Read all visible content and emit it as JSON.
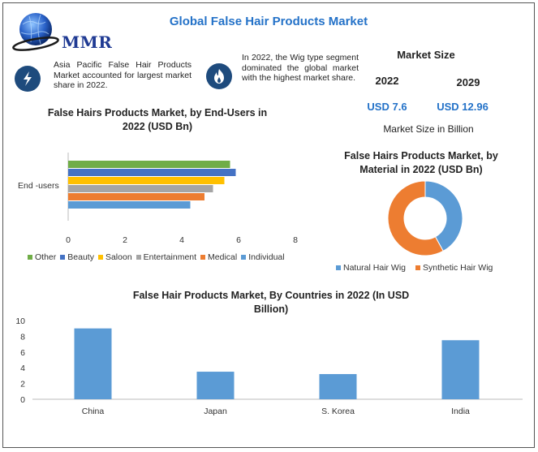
{
  "header": {
    "title": "Global False Hair Products Market",
    "logo_text": "MMR"
  },
  "info": {
    "item1": "Asia Pacific False Hair Products Market accounted for largest market share in 2022.",
    "item2": "In 2022, the Wig type segment dominated the global market with the highest market share."
  },
  "market_size": {
    "title": "Market Size",
    "year1": "2022",
    "year2": "2029",
    "value1": "USD 7.6",
    "value2": "USD 12.96",
    "caption": "Market Size in Billion"
  },
  "colors": {
    "accent_blue": "#2472c8",
    "dark_blue": "#1e4b7d"
  },
  "icons": [
    "globe-icon",
    "lightning-icon",
    "flame-icon"
  ],
  "chart_data": [
    {
      "type": "bar",
      "orientation": "horizontal",
      "title": "False Hairs Products Market, by End-Users in 2022 (USD Bn)",
      "categories": [
        "End -users"
      ],
      "xlim": [
        0,
        8
      ],
      "xticks": [
        0,
        2,
        4,
        6,
        8
      ],
      "legend_position": "bottom",
      "series": [
        {
          "name": "Other",
          "values": [
            5.7
          ],
          "color": "#70ad47"
        },
        {
          "name": "Beauty",
          "values": [
            5.9
          ],
          "color": "#4472c4"
        },
        {
          "name": "Saloon",
          "values": [
            5.5
          ],
          "color": "#ffc000"
        },
        {
          "name": "Entertainment",
          "values": [
            5.1
          ],
          "color": "#a5a5a5"
        },
        {
          "name": "Medical",
          "values": [
            4.8
          ],
          "color": "#ed7d31"
        },
        {
          "name": "Individual",
          "values": [
            4.3
          ],
          "color": "#5b9bd5"
        }
      ]
    },
    {
      "type": "pie",
      "donut": true,
      "title": "False Hairs Products Market, by Material in 2022 (USD Bn)",
      "legend_position": "bottom",
      "labels": [
        "Natural Hair Wig",
        "Synthetic Hair Wig"
      ],
      "values": [
        42,
        58
      ],
      "colors": [
        "#5b9bd5",
        "#ed7d31"
      ]
    },
    {
      "type": "bar",
      "title": "False Hair Products Market, By Countries in 2022 (In USD Billion)",
      "categories": [
        "China",
        "Japan",
        "S. Korea",
        "India"
      ],
      "values": [
        9,
        3.5,
        3.2,
        7.5
      ],
      "ylim": [
        0,
        10
      ],
      "yticks": [
        0,
        2,
        4,
        6,
        8,
        10
      ],
      "color": "#5b9bd5"
    }
  ]
}
